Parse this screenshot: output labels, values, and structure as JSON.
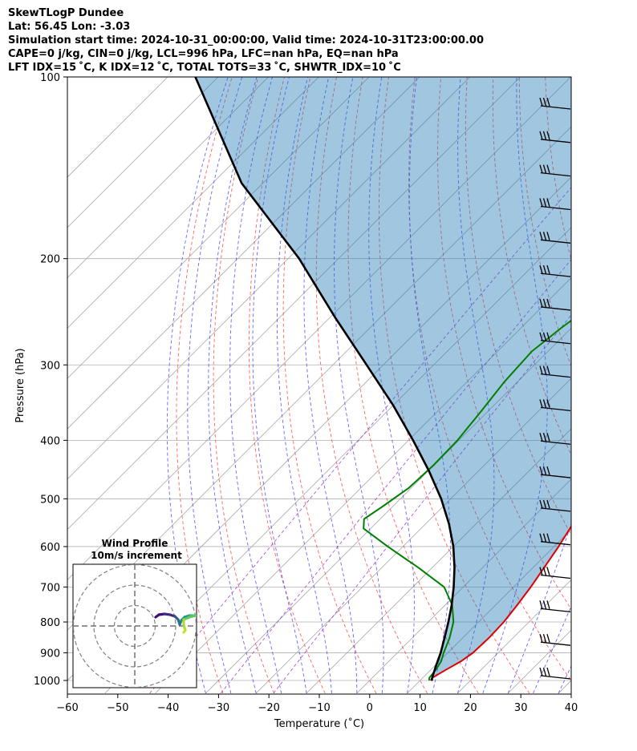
{
  "header": {
    "title": "SkewTLogP Dundee",
    "location": "Lat: 56.45   Lon: -3.03",
    "times": "Simulation start time: 2024-10-31_00:00:00, Valid time: 2024-10-31T23:00:00.00",
    "cape_line": "CAPE=0 j/kg, CIN=0 j/kg, LCL=996 hPa, LFC=nan hPa, EQ=nan hPa",
    "index_line": "LFT IDX=15 ˚C, K IDX=12 ˚C, TOTAL TOTS=33 ˚C, SHWTR_IDX=10 ˚C"
  },
  "chart_data": {
    "type": "line",
    "xlabel": "Temperature (˚C)",
    "ylabel": "Pressure (hPa)",
    "xlim": [
      -60,
      40
    ],
    "ylim": [
      1050,
      100
    ],
    "y_scale": "log",
    "skew": true,
    "grid": true,
    "x_ticks": [
      "−60",
      "−50",
      "−40",
      "−30",
      "−20",
      "−10",
      "0",
      "10",
      "20",
      "30",
      "40"
    ],
    "y_ticks": [
      "100",
      "200",
      "300",
      "400",
      "500",
      "600",
      "700",
      "800",
      "900",
      "1000"
    ],
    "series": [
      {
        "name": "",
        "role": "temperature",
        "color": "#e00000",
        "points": [
          [
            12.1,
            1000
          ],
          [
            11.9,
            990
          ],
          [
            13,
            960
          ],
          [
            14.3,
            930
          ],
          [
            15,
            900
          ],
          [
            15.2,
            850
          ],
          [
            15,
            800
          ],
          [
            14.3,
            750
          ],
          [
            13.4,
            700
          ],
          [
            12.2,
            650
          ],
          [
            10.9,
            600
          ],
          [
            9.2,
            550
          ],
          [
            6.8,
            500
          ],
          [
            3.7,
            460
          ],
          [
            0.3,
            420
          ],
          [
            -3.5,
            380
          ],
          [
            -7.8,
            340
          ],
          [
            -12.4,
            300
          ],
          [
            -17.6,
            265
          ],
          [
            -21.8,
            236
          ],
          [
            -25.5,
            210
          ],
          [
            -29.8,
            190
          ],
          [
            -35.5,
            175
          ],
          [
            -38.7,
            165
          ],
          [
            -39.9,
            154
          ],
          [
            -43.3,
            143
          ],
          [
            -48.4,
            130
          ],
          [
            -52.6,
            118
          ],
          [
            -55.8,
            107
          ],
          [
            -57.7,
            100
          ]
        ]
      },
      {
        "name": "",
        "role": "dewpoint",
        "color": "#008000",
        "points": [
          [
            11.8,
            1000
          ],
          [
            11.3,
            990
          ],
          [
            11,
            960
          ],
          [
            10.4,
            930
          ],
          [
            9.2,
            900
          ],
          [
            7.4,
            850
          ],
          [
            5,
            800
          ],
          [
            1.4,
            750
          ],
          [
            -3.8,
            700
          ],
          [
            -12.8,
            650
          ],
          [
            -23,
            600
          ],
          [
            -31.4,
            560
          ],
          [
            -33.2,
            540
          ],
          [
            -32,
            515
          ],
          [
            -30.5,
            480
          ],
          [
            -30.1,
            440
          ],
          [
            -30.3,
            400
          ],
          [
            -31.3,
            360
          ],
          [
            -32.6,
            320
          ],
          [
            -33.2,
            285
          ],
          [
            -32,
            260
          ],
          [
            -30.5,
            240
          ],
          [
            -33.2,
            225
          ],
          [
            -36.3,
            206
          ],
          [
            -41.2,
            186
          ],
          [
            -43.9,
            171
          ],
          [
            -45.5,
            160
          ],
          [
            -47,
            145
          ],
          [
            -52.5,
            128
          ],
          [
            -54.4,
            110
          ],
          [
            -56.4,
            103
          ],
          [
            -57.3,
            100
          ]
        ]
      },
      {
        "name": "",
        "role": "parcel",
        "color": "#000000",
        "points": [
          [
            12.5,
            1000
          ],
          [
            12.1,
            996
          ],
          [
            10.4,
            950
          ],
          [
            8.6,
            900
          ],
          [
            6.4,
            850
          ],
          [
            4,
            800
          ],
          [
            1.3,
            750
          ],
          [
            -1.9,
            700
          ],
          [
            -5.6,
            650
          ],
          [
            -10,
            600
          ],
          [
            -15.4,
            550
          ],
          [
            -21.9,
            500
          ],
          [
            -29.8,
            450
          ],
          [
            -39.1,
            400
          ],
          [
            -50,
            350
          ],
          [
            -63.3,
            300
          ],
          [
            -79.1,
            250
          ],
          [
            -97.8,
            200
          ],
          [
            -124.2,
            150
          ],
          [
            -154.5,
            100
          ]
        ]
      }
    ],
    "shaded_region": "CAPE/CIN area between temperature and parcel profile",
    "wind_barbs_count": 18,
    "inset": {
      "type": "hodograph",
      "title": "Wind Profile",
      "subtitle": "10m/s increment",
      "rings": 3
    }
  }
}
